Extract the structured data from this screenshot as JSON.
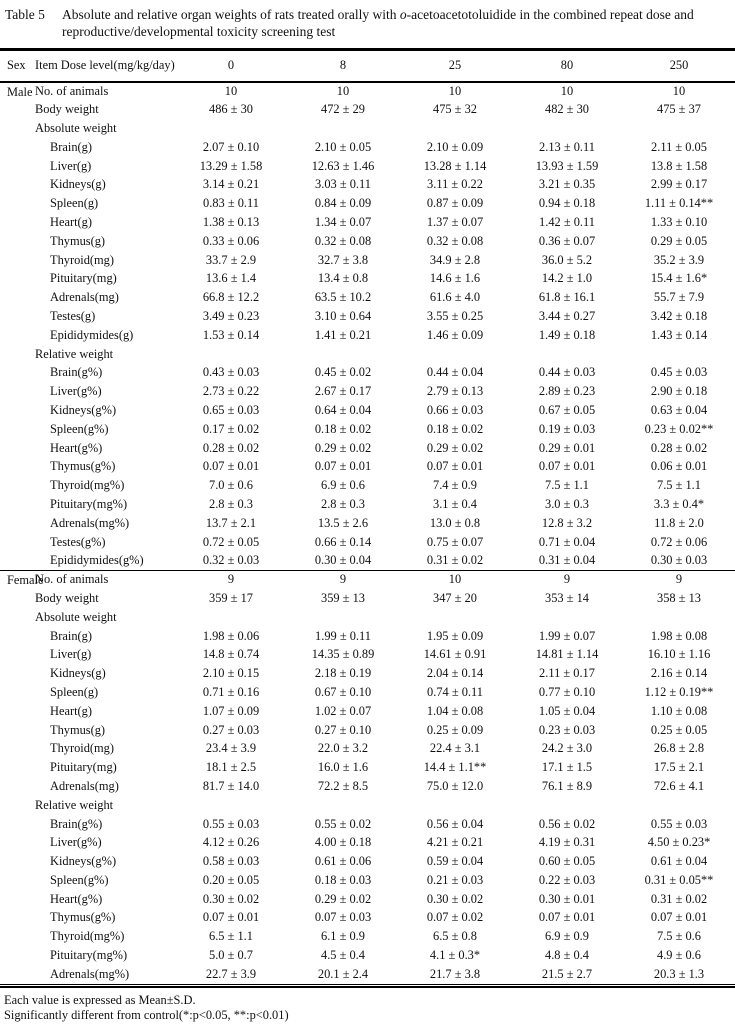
{
  "title": {
    "table_label": "Table 5",
    "caption_part1": "Absolute and relative organ weights of rats treated orally with ",
    "caption_italic": "o",
    "caption_part2": "-acetoacetotoluidide in the combined repeat dose and reproductive/developmental toxicity screening test"
  },
  "header": {
    "sex": "Sex",
    "item": "Item  Dose level(mg/kg/day)",
    "doses": [
      "0",
      "8",
      "25",
      "80",
      "250"
    ]
  },
  "sections": [
    {
      "sex": "Male",
      "rows": [
        {
          "label": "No. of animals",
          "indent": 1,
          "values": [
            "10",
            "10",
            "10",
            "10",
            "10"
          ]
        },
        {
          "label": "Body weight",
          "indent": 1,
          "values": [
            "486 ± 30",
            "472 ± 29",
            "475 ± 32",
            "482 ± 30",
            "475 ± 37"
          ]
        },
        {
          "label": "Absolute weight",
          "indent": 1,
          "values": [
            "",
            "",
            "",
            "",
            ""
          ]
        },
        {
          "label": "Brain(g)",
          "indent": 2,
          "values": [
            "2.07 ± 0.10",
            "2.10 ± 0.05",
            "2.10 ± 0.09",
            "2.13 ± 0.11",
            "2.11 ± 0.05"
          ]
        },
        {
          "label": "Liver(g)",
          "indent": 2,
          "values": [
            "13.29 ± 1.58",
            "12.63 ± 1.46",
            "13.28 ± 1.14",
            "13.93 ± 1.59",
            "13.8 ± 1.58"
          ]
        },
        {
          "label": "Kidneys(g)",
          "indent": 2,
          "values": [
            "3.14 ± 0.21",
            "3.03 ± 0.11",
            "3.11 ± 0.22",
            "3.21 ± 0.35",
            "2.99 ± 0.17"
          ]
        },
        {
          "label": "Spleen(g)",
          "indent": 2,
          "values": [
            "0.83 ± 0.11",
            "0.84 ± 0.09",
            "0.87 ± 0.09",
            "0.94 ± 0.18",
            "1.11 ± 0.14**"
          ]
        },
        {
          "label": "Heart(g)",
          "indent": 2,
          "values": [
            "1.38 ± 0.13",
            "1.34 ± 0.07",
            "1.37 ± 0.07",
            "1.42 ± 0.11",
            "1.33 ± 0.10"
          ]
        },
        {
          "label": "Thymus(g)",
          "indent": 2,
          "values": [
            "0.33 ± 0.06",
            "0.32 ± 0.08",
            "0.32 ± 0.08",
            "0.36 ± 0.07",
            "0.29 ± 0.05"
          ]
        },
        {
          "label": "Thyroid(mg)",
          "indent": 2,
          "values": [
            "33.7 ± 2.9",
            "32.7 ± 3.8",
            "34.9 ± 2.8",
            "36.0 ± 5.2",
            "35.2 ± 3.9"
          ]
        },
        {
          "label": "Pituitary(mg)",
          "indent": 2,
          "values": [
            "13.6 ± 1.4",
            "13.4 ± 0.8",
            "14.6 ± 1.6",
            "14.2 ± 1.0",
            "15.4 ± 1.6*"
          ]
        },
        {
          "label": "Adrenals(mg)",
          "indent": 2,
          "values": [
            "66.8 ± 12.2",
            "63.5 ± 10.2",
            "61.6 ± 4.0",
            "61.8 ± 16.1",
            "55.7 ± 7.9"
          ]
        },
        {
          "label": "Testes(g)",
          "indent": 2,
          "values": [
            "3.49 ± 0.23",
            "3.10 ± 0.64",
            "3.55 ± 0.25",
            "3.44 ± 0.27",
            "3.42 ± 0.18"
          ]
        },
        {
          "label": "Epididymides(g)",
          "indent": 2,
          "values": [
            "1.53 ± 0.14",
            "1.41 ± 0.21",
            "1.46 ± 0.09",
            "1.49 ± 0.18",
            "1.43 ± 0.14"
          ]
        },
        {
          "label": "Relative weight",
          "indent": 1,
          "values": [
            "",
            "",
            "",
            "",
            ""
          ]
        },
        {
          "label": "Brain(g%)",
          "indent": 2,
          "values": [
            "0.43 ± 0.03",
            "0.45 ± 0.02",
            "0.44 ± 0.04",
            "0.44 ± 0.03",
            "0.45 ± 0.03"
          ]
        },
        {
          "label": "Liver(g%)",
          "indent": 2,
          "values": [
            "2.73 ± 0.22",
            "2.67 ± 0.17",
            "2.79 ± 0.13",
            "2.89 ± 0.23",
            "2.90 ± 0.18"
          ]
        },
        {
          "label": "Kidneys(g%)",
          "indent": 2,
          "values": [
            "0.65 ± 0.03",
            "0.64 ± 0.04",
            "0.66 ± 0.03",
            "0.67 ± 0.05",
            "0.63 ± 0.04"
          ]
        },
        {
          "label": "Spleen(g%)",
          "indent": 2,
          "values": [
            "0.17 ± 0.02",
            "0.18 ± 0.02",
            "0.18 ± 0.02",
            "0.19 ± 0.03",
            "0.23 ± 0.02**"
          ]
        },
        {
          "label": "Heart(g%)",
          "indent": 2,
          "values": [
            "0.28 ± 0.02",
            "0.29 ± 0.02",
            "0.29 ± 0.02",
            "0.29 ± 0.01",
            "0.28 ± 0.02"
          ]
        },
        {
          "label": "Thymus(g%)",
          "indent": 2,
          "values": [
            "0.07 ± 0.01",
            "0.07 ± 0.01",
            "0.07 ± 0.01",
            "0.07 ± 0.01",
            "0.06 ± 0.01"
          ]
        },
        {
          "label": "Thyroid(mg%)",
          "indent": 2,
          "values": [
            "7.0 ± 0.6",
            "6.9 ± 0.6",
            "7.4 ± 0.9",
            "7.5 ± 1.1",
            "7.5 ± 1.1"
          ]
        },
        {
          "label": "Pituitary(mg%)",
          "indent": 2,
          "values": [
            "2.8 ± 0.3",
            "2.8 ± 0.3",
            "3.1 ± 0.4",
            "3.0 ± 0.3",
            "3.3 ± 0.4*"
          ]
        },
        {
          "label": "Adrenals(mg%)",
          "indent": 2,
          "values": [
            "13.7 ± 2.1",
            "13.5 ± 2.6",
            "13.0 ± 0.8",
            "12.8 ± 3.2",
            "11.8 ± 2.0"
          ]
        },
        {
          "label": "Testes(g%)",
          "indent": 2,
          "values": [
            "0.72 ± 0.05",
            "0.66 ± 0.14",
            "0.75 ± 0.07",
            "0.71 ± 0.04",
            "0.72 ± 0.06"
          ]
        },
        {
          "label": "Epididymides(g%)",
          "indent": 2,
          "values": [
            "0.32 ± 0.03",
            "0.30 ± 0.04",
            "0.31 ± 0.02",
            "0.31 ± 0.04",
            "0.30 ± 0.03"
          ]
        }
      ]
    },
    {
      "sex": "Female",
      "rows": [
        {
          "label": "No. of animals",
          "indent": 1,
          "values": [
            "9",
            "9",
            "10",
            "9",
            "9"
          ]
        },
        {
          "label": "Body weight",
          "indent": 1,
          "values": [
            "359 ± 17",
            "359 ± 13",
            "347 ± 20",
            "353 ± 14",
            "358 ± 13"
          ]
        },
        {
          "label": "Absolute weight",
          "indent": 1,
          "values": [
            "",
            "",
            "",
            "",
            ""
          ]
        },
        {
          "label": "Brain(g)",
          "indent": 2,
          "values": [
            "1.98 ± 0.06",
            "1.99 ± 0.11",
            "1.95 ± 0.09",
            "1.99 ± 0.07",
            "1.98 ± 0.08"
          ]
        },
        {
          "label": "Liver(g)",
          "indent": 2,
          "values": [
            "14.8 ± 0.74",
            "14.35 ± 0.89",
            "14.61 ± 0.91",
            "14.81 ± 1.14",
            "16.10 ± 1.16"
          ]
        },
        {
          "label": "Kidneys(g)",
          "indent": 2,
          "values": [
            "2.10 ± 0.15",
            "2.18 ± 0.19",
            "2.04 ± 0.14",
            "2.11 ± 0.17",
            "2.16 ± 0.14"
          ]
        },
        {
          "label": "Spleen(g)",
          "indent": 2,
          "values": [
            "0.71 ± 0.16",
            "0.67 ± 0.10",
            "0.74 ± 0.11",
            "0.77 ± 0.10",
            "1.12 ± 0.19**"
          ]
        },
        {
          "label": "Heart(g)",
          "indent": 2,
          "values": [
            "1.07 ± 0.09",
            "1.02 ± 0.07",
            "1.04 ± 0.08",
            "1.05 ± 0.04",
            "1.10 ± 0.08"
          ]
        },
        {
          "label": "Thymus(g)",
          "indent": 2,
          "values": [
            "0.27 ± 0.03",
            "0.27 ± 0.10",
            "0.25 ± 0.09",
            "0.23 ± 0.03",
            "0.25 ± 0.05"
          ]
        },
        {
          "label": "Thyroid(mg)",
          "indent": 2,
          "values": [
            "23.4 ± 3.9",
            "22.0 ± 3.2",
            "22.4 ± 3.1",
            "24.2 ± 3.0",
            "26.8 ± 2.8"
          ]
        },
        {
          "label": "Pituitary(mg)",
          "indent": 2,
          "values": [
            "18.1 ± 2.5",
            "16.0 ± 1.6",
            "14.4 ± 1.1**",
            "17.1 ± 1.5",
            "17.5 ± 2.1"
          ]
        },
        {
          "label": "Adrenals(mg)",
          "indent": 2,
          "values": [
            "81.7 ± 14.0",
            "72.2 ± 8.5",
            "75.0 ± 12.0",
            "76.1 ± 8.9",
            "72.6 ± 4.1"
          ]
        },
        {
          "label": "Relative weight",
          "indent": 1,
          "values": [
            "",
            "",
            "",
            "",
            ""
          ]
        },
        {
          "label": "Brain(g%)",
          "indent": 2,
          "values": [
            "0.55 ± 0.03",
            "0.55 ± 0.02",
            "0.56 ± 0.04",
            "0.56 ± 0.02",
            "0.55 ± 0.03"
          ]
        },
        {
          "label": "Liver(g%)",
          "indent": 2,
          "values": [
            "4.12 ± 0.26",
            "4.00 ± 0.18",
            "4.21 ± 0.21",
            "4.19 ± 0.31",
            "4.50 ± 0.23*"
          ]
        },
        {
          "label": "Kidneys(g%)",
          "indent": 2,
          "values": [
            "0.58 ± 0.03",
            "0.61 ± 0.06",
            "0.59 ± 0.04",
            "0.60 ± 0.05",
            "0.61 ± 0.04"
          ]
        },
        {
          "label": "Spleen(g%)",
          "indent": 2,
          "values": [
            "0.20 ± 0.05",
            "0.18 ± 0.03",
            "0.21 ± 0.03",
            "0.22 ± 0.03",
            "0.31 ± 0.05**"
          ]
        },
        {
          "label": "Heart(g%)",
          "indent": 2,
          "values": [
            "0.30 ± 0.02",
            "0.29 ± 0.02",
            "0.30 ± 0.02",
            "0.30 ± 0.01",
            "0.31 ± 0.02"
          ]
        },
        {
          "label": "Thymus(g%)",
          "indent": 2,
          "values": [
            "0.07 ± 0.01",
            "0.07 ± 0.03",
            "0.07 ± 0.02",
            "0.07 ± 0.01",
            "0.07 ± 0.01"
          ]
        },
        {
          "label": "Thyroid(mg%)",
          "indent": 2,
          "values": [
            "6.5 ± 1.1",
            "6.1 ± 0.9",
            "6.5 ± 0.8",
            "6.9 ± 0.9",
            "7.5 ± 0.6"
          ]
        },
        {
          "label": "Pituitary(mg%)",
          "indent": 2,
          "values": [
            "5.0 ± 0.7",
            "4.5 ± 0.4",
            "4.1 ± 0.3*",
            "4.8 ± 0.4",
            "4.9 ± 0.6"
          ]
        },
        {
          "label": "Adrenals(mg%)",
          "indent": 2,
          "values": [
            "22.7 ± 3.9",
            "20.1 ± 2.4",
            "21.7 ± 3.8",
            "21.5 ± 2.7",
            "20.3 ± 1.3"
          ]
        }
      ]
    }
  ],
  "footnotes": [
    "Each value is expressed as Mean±S.D.",
    "Significantly different from control(*:p<0.05, **:p<0.01)"
  ]
}
